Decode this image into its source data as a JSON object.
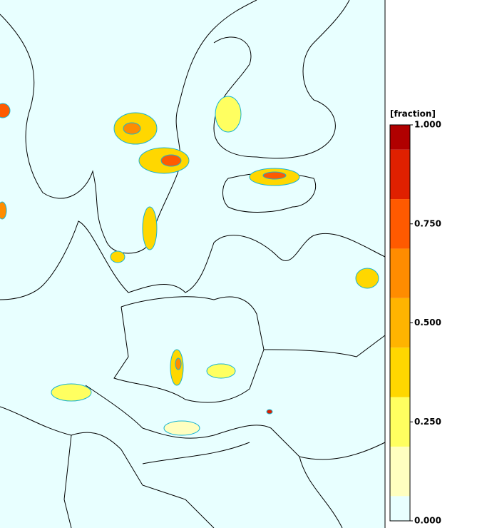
{
  "colorbar": {
    "unit": "[fraction]",
    "lim": [
      0,
      1
    ],
    "colors": [
      "#e8ffff",
      "#ffffc0",
      "#ffff60",
      "#ffd700",
      "#ffb400",
      "#ff8c00",
      "#ff5a00",
      "#e02000",
      "#b00000"
    ],
    "ticks": [
      {
        "value": 1,
        "label": "1.000"
      },
      {
        "value": 0.75,
        "label": "0.750"
      },
      {
        "value": 0.5,
        "label": "0.500"
      },
      {
        "value": 0.25,
        "label": "0.250"
      },
      {
        "value": 0,
        "label": "0.000"
      }
    ]
  }
}
